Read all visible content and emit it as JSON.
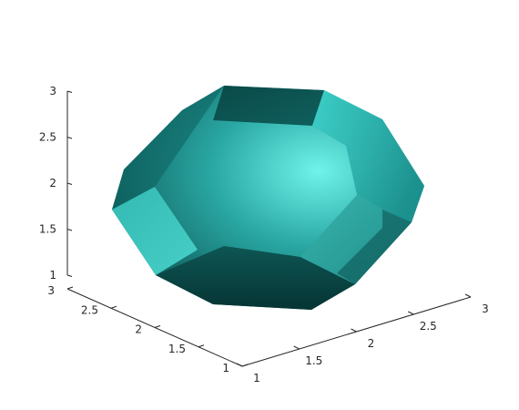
{
  "chart_data": {
    "type": "surface3d",
    "title": "",
    "xlabel": "",
    "ylabel": "",
    "zlabel": "",
    "x_ticks": [
      "1",
      "1.5",
      "2",
      "2.5",
      "3"
    ],
    "y_ticks": [
      "1",
      "1.5",
      "2",
      "2.5",
      "3"
    ],
    "z_ticks": [
      "1",
      "1.5",
      "2",
      "2.5",
      "3"
    ],
    "xlim": [
      1,
      3
    ],
    "ylim": [
      1,
      3
    ],
    "zlim": [
      1,
      3
    ],
    "grid": false,
    "legend": "none",
    "colormap": "cyan-shaded",
    "colors": {
      "surface_light": "#6ff3ea",
      "surface_mid": "#1e9a98",
      "surface_dark": "#073a3a",
      "axis": "#262626"
    }
  }
}
